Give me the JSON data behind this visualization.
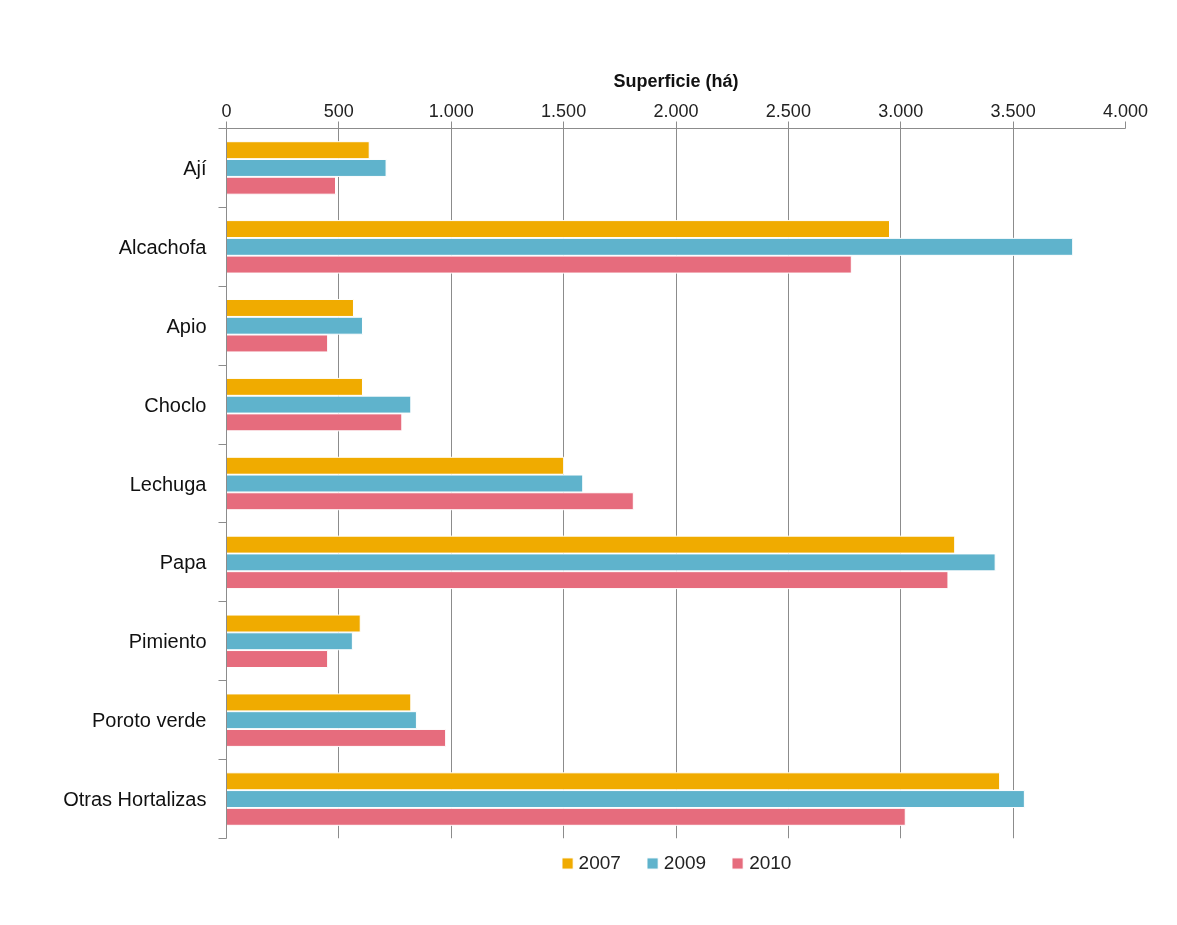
{
  "chart_data": {
    "type": "bar",
    "orientation": "horizontal",
    "xlabel": "Superficie (há)",
    "categories": [
      "Ají",
      "Alcachofa",
      "Apio",
      "Choclo",
      "Lechuga",
      "Papa",
      "Pimiento",
      "Poroto verde",
      "Otras Hortalizas"
    ],
    "series": [
      {
        "name": "2007",
        "color": "#f0ab00",
        "values": [
          635,
          2950,
          565,
          605,
          1500,
          3240,
          595,
          820,
          3440
        ]
      },
      {
        "name": "2009",
        "color": "#5fb3cc",
        "values": [
          710,
          3765,
          605,
          820,
          1585,
          3420,
          560,
          845,
          3550
        ]
      },
      {
        "name": "2010",
        "color": "#e66c7d",
        "values": [
          485,
          2780,
          450,
          780,
          1810,
          3210,
          450,
          975,
          3020
        ]
      }
    ],
    "xlim": [
      0,
      4000
    ],
    "xticks": [
      0,
      500,
      {
        "value": 1000,
        "label": "1.000"
      },
      {
        "value": 1500,
        "label": "1.500"
      },
      {
        "value": 2000,
        "label": "2.000"
      },
      {
        "value": 2500,
        "label": "2.500"
      },
      {
        "value": 3000,
        "label": "3.000"
      },
      {
        "value": 3500,
        "label": "3.500"
      },
      {
        "value": 4000,
        "label": "4.000"
      }
    ],
    "grid": "x",
    "legend": "bottom"
  }
}
